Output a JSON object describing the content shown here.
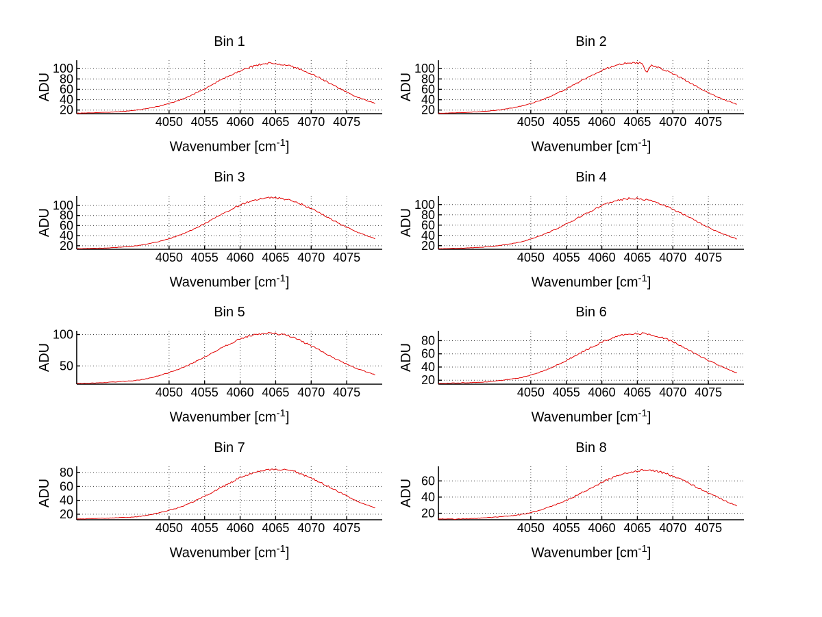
{
  "figure": {
    "background": "#ffffff",
    "axis_color": "#000000",
    "grid_color": "#404040",
    "text_color": "#000000"
  },
  "chart_data": {
    "type": "line",
    "title": "",
    "xlabel": "Wavenumber [cm^-1]",
    "xlabel_prefix": "Wavenumber [cm",
    "xlabel_sup": "-1",
    "xlabel_suffix": "]",
    "ylabel": "ADU",
    "grid": true,
    "legend": "none",
    "line_color": "#e10000",
    "grid_color": "#404040",
    "xlim": [
      4037,
      4080
    ],
    "xticks": [
      4050,
      4055,
      4060,
      4065,
      4070,
      4075
    ],
    "x": [
      4037,
      4040,
      4043,
      4046,
      4049,
      4052,
      4055,
      4058,
      4061,
      4064,
      4067,
      4070,
      4073,
      4076,
      4079
    ],
    "subplots": [
      {
        "title": "Bin 1",
        "ylim": [
          13,
          116
        ],
        "yticks": [
          20,
          40,
          60,
          80,
          100
        ],
        "values": [
          14,
          15,
          17,
          21,
          29,
          42,
          61,
          83,
          101,
          110,
          105,
          90,
          69,
          48,
          33
        ]
      },
      {
        "title": "Bin 2",
        "ylim": [
          13,
          116
        ],
        "yticks": [
          20,
          40,
          60,
          80,
          100
        ],
        "values": [
          14,
          15,
          17,
          21,
          29,
          42,
          61,
          83,
          102,
          111,
          106,
          90,
          68,
          47,
          31
        ],
        "anomaly": {
          "dip_x": 4066.3,
          "dip_depth": 15,
          "dip_width": 0.25
        }
      },
      {
        "title": "Bin 3",
        "ylim": [
          13,
          119
        ],
        "yticks": [
          20,
          40,
          60,
          80,
          100
        ],
        "values": [
          14,
          15,
          17,
          21,
          30,
          44,
          64,
          87,
          106,
          115,
          110,
          94,
          71,
          50,
          34
        ]
      },
      {
        "title": "Bin 4",
        "ylim": [
          13,
          117
        ],
        "yticks": [
          20,
          40,
          60,
          80,
          100
        ],
        "values": [
          14,
          15,
          17,
          21,
          29,
          43,
          62,
          84,
          103,
          112,
          107,
          91,
          70,
          49,
          33
        ]
      },
      {
        "title": "Bin 5",
        "ylim": [
          21,
          106
        ],
        "yticks": [
          50,
          100
        ],
        "values": [
          22,
          23,
          25,
          28,
          36,
          48,
          64,
          82,
          97,
          102,
          97,
          82,
          64,
          48,
          36
        ]
      },
      {
        "title": "Bin 6",
        "ylim": [
          14,
          95
        ],
        "yticks": [
          20,
          40,
          60,
          80
        ],
        "values": [
          15,
          16,
          17,
          20,
          25,
          35,
          50,
          67,
          82,
          90,
          89,
          78,
          61,
          45,
          31
        ]
      },
      {
        "title": "Bin 7",
        "ylim": [
          12,
          89
        ],
        "yticks": [
          20,
          40,
          60,
          80
        ],
        "values": [
          13,
          14,
          15,
          17,
          23,
          32,
          46,
          62,
          77,
          84,
          83,
          72,
          57,
          41,
          29
        ]
      },
      {
        "title": "Bin 8",
        "ylim": [
          12,
          78
        ],
        "yticks": [
          20,
          40,
          60
        ],
        "values": [
          13,
          13,
          14,
          16,
          19,
          26,
          36,
          49,
          62,
          71,
          73,
          66,
          54,
          41,
          29
        ]
      }
    ]
  }
}
